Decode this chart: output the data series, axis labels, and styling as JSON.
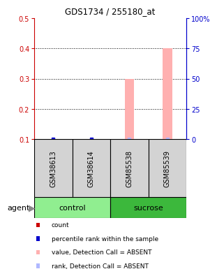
{
  "title": "GDS1734 / 255180_at",
  "samples": [
    "GSM38613",
    "GSM38614",
    "GSM85538",
    "GSM85539"
  ],
  "groups": [
    {
      "name": "control",
      "color": "#90ee90"
    },
    {
      "name": "sucrose",
      "color": "#3cb83c"
    }
  ],
  "ylim_left": [
    0.1,
    0.5
  ],
  "ylim_right": [
    0,
    100
  ],
  "yticks_left": [
    0.1,
    0.2,
    0.3,
    0.4,
    0.5
  ],
  "ytick_labels_left": [
    "0.1",
    "0.2",
    "0.3",
    "0.4",
    "0.5"
  ],
  "yticks_right": [
    0,
    25,
    50,
    75,
    100
  ],
  "ytick_labels_right": [
    "0",
    "25",
    "50",
    "75",
    "100%"
  ],
  "bars_absent_value": [
    null,
    null,
    0.3,
    0.4
  ],
  "bar_color_absent_value": "#ffb0b0",
  "dot_color_rank_absent": "#b0b8ff",
  "dot_color_rank_present": "#0000cc",
  "rank_absent": [
    false,
    false,
    true,
    true
  ],
  "legend_items": [
    {
      "color": "#cc0000",
      "label": "count"
    },
    {
      "color": "#0000cc",
      "label": "percentile rank within the sample"
    },
    {
      "color": "#ffb0b0",
      "label": "value, Detection Call = ABSENT"
    },
    {
      "color": "#b0b8ff",
      "label": "rank, Detection Call = ABSENT"
    }
  ],
  "left_axis_color": "#cc0000",
  "right_axis_color": "#0000cc",
  "sample_box_color": "#d3d3d3",
  "agent_label": "agent"
}
